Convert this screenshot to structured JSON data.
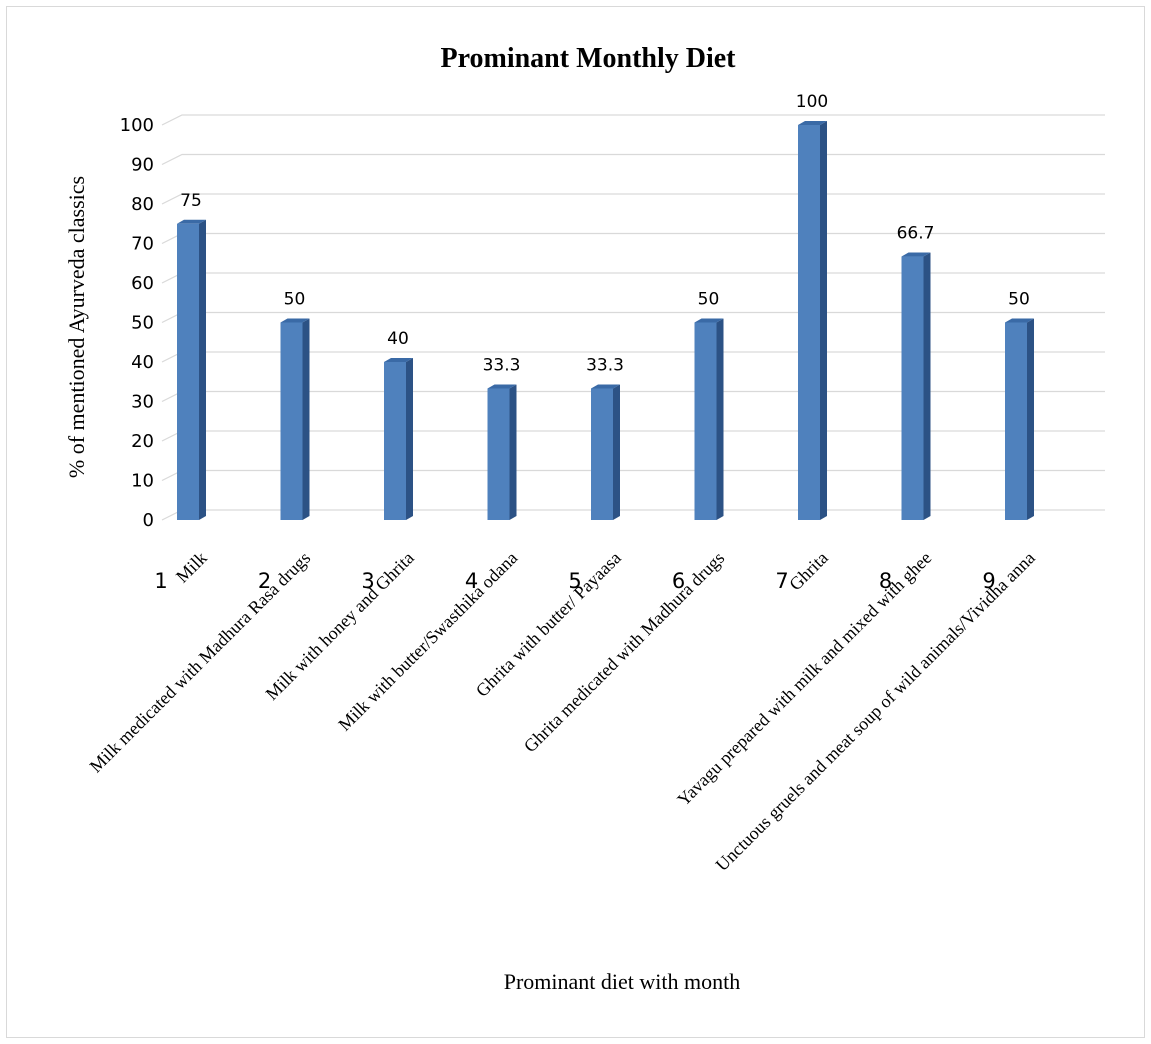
{
  "chart_data": {
    "type": "bar",
    "title": "Prominant Monthly Diet",
    "xlabel": "Prominant diet with month",
    "ylabel": "% of mentioned Ayurveda classics",
    "ylim": [
      0,
      100
    ],
    "yticks": [
      0,
      10,
      20,
      30,
      40,
      50,
      60,
      70,
      80,
      90,
      100
    ],
    "grid": true,
    "legend": "none",
    "style": "3d-column",
    "bar_color": "#4F81BD",
    "bar_side_color": "#2C5285",
    "bar_top_color": "#3A6AA6",
    "grid_color": "#d9d9d9",
    "categories": [
      {
        "number": "1",
        "label": "Milk"
      },
      {
        "number": "2",
        "label": "Milk medicated with Madhura Rasa drugs"
      },
      {
        "number": "3",
        "label": "Milk with honey and Ghrita"
      },
      {
        "number": "4",
        "label": "Milk with butter/Swasthika odana"
      },
      {
        "number": "5",
        "label": "Ghrita with butter/ Payaasa"
      },
      {
        "number": "6",
        "label": "Ghrita  medicated with Madhura drugs"
      },
      {
        "number": "7",
        "label": "Ghrita"
      },
      {
        "number": "8",
        "label": "Yavagu prepared with milk and mixed with ghee"
      },
      {
        "number": "9",
        "label": "Unctuous gruels and meat soup of wild animals/Vividha anna"
      }
    ],
    "values": [
      75,
      50,
      40,
      33.3,
      33.3,
      50,
      100,
      66.7,
      50
    ],
    "data_labels": [
      "75",
      "50",
      "40",
      "33.3",
      "33.3",
      "50",
      "100",
      "66.7",
      "50"
    ]
  }
}
